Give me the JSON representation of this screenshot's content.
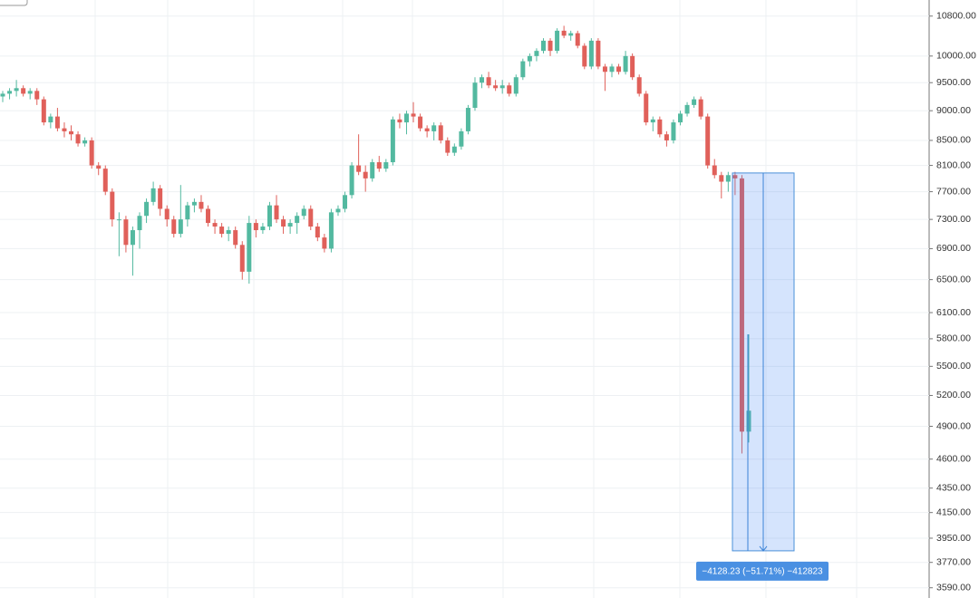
{
  "chart_data": {
    "type": "candlestick",
    "log_scale": true,
    "grid": true,
    "up_color": "#53b9a0",
    "down_color": "#e0605a",
    "ylim": [
      3520,
      11140
    ],
    "yticks": [
      {
        "value": 10800,
        "label": "10800.00"
      },
      {
        "value": 10000,
        "label": "10000.00"
      },
      {
        "value": 9500,
        "label": "9500.00"
      },
      {
        "value": 9000,
        "label": "9000.00"
      },
      {
        "value": 8500,
        "label": "8500.00"
      },
      {
        "value": 8100,
        "label": "8100.00"
      },
      {
        "value": 7700,
        "label": "7700.00"
      },
      {
        "value": 7300,
        "label": "7300.00"
      },
      {
        "value": 6900,
        "label": "6900.00"
      },
      {
        "value": 6500,
        "label": "6500.00"
      },
      {
        "value": 6100,
        "label": "6100.00"
      },
      {
        "value": 5800,
        "label": "5800.00"
      },
      {
        "value": 5500,
        "label": "5500.00"
      },
      {
        "value": 5200,
        "label": "5200.00"
      },
      {
        "value": 4900,
        "label": "4900.00"
      },
      {
        "value": 4600,
        "label": "4600.00"
      },
      {
        "value": 4350,
        "label": "4350.00"
      },
      {
        "value": 4150,
        "label": "4150.00"
      },
      {
        "value": 3950,
        "label": "3950.00"
      },
      {
        "value": 3770,
        "label": "3770.00"
      },
      {
        "value": 3590,
        "label": "3590.00"
      }
    ],
    "candles": [
      [
        9250,
        9350,
        9150,
        9300
      ],
      [
        9300,
        9400,
        9200,
        9350
      ],
      [
        9350,
        9550,
        9250,
        9400
      ],
      [
        9400,
        9450,
        9250,
        9300
      ],
      [
        9300,
        9400,
        9200,
        9350
      ],
      [
        9350,
        9400,
        9100,
        9200
      ],
      [
        9200,
        9250,
        8750,
        8800
      ],
      [
        8800,
        8950,
        8700,
        8900
      ],
      [
        8900,
        9050,
        8650,
        8700
      ],
      [
        8700,
        8800,
        8550,
        8650
      ],
      [
        8650,
        8750,
        8500,
        8600
      ],
      [
        8600,
        8650,
        8400,
        8450
      ],
      [
        8450,
        8550,
        8400,
        8500
      ],
      [
        8500,
        8550,
        8050,
        8100
      ],
      [
        8100,
        8150,
        7950,
        8050
      ],
      [
        8050,
        8100,
        7650,
        7700
      ],
      [
        7700,
        7750,
        7200,
        7300
      ],
      [
        7300,
        7400,
        6800,
        7300
      ],
      [
        7300,
        7350,
        6850,
        6950
      ],
      [
        6950,
        7200,
        6550,
        7150
      ],
      [
        7150,
        7400,
        6900,
        7350
      ],
      [
        7350,
        7600,
        7250,
        7550
      ],
      [
        7550,
        7850,
        7500,
        7750
      ],
      [
        7750,
        7800,
        7350,
        7450
      ],
      [
        7450,
        7500,
        7200,
        7300
      ],
      [
        7300,
        7350,
        7050,
        7100
      ],
      [
        7100,
        7800,
        7050,
        7300
      ],
      [
        7300,
        7550,
        7200,
        7500
      ],
      [
        7500,
        7600,
        7400,
        7550
      ],
      [
        7550,
        7650,
        7400,
        7450
      ],
      [
        7450,
        7500,
        7200,
        7250
      ],
      [
        7250,
        7300,
        7100,
        7200
      ],
      [
        7200,
        7250,
        7050,
        7100
      ],
      [
        7100,
        7200,
        7000,
        7150
      ],
      [
        7150,
        7200,
        6900,
        6950
      ],
      [
        6950,
        7000,
        6500,
        6600
      ],
      [
        6600,
        7350,
        6450,
        7250
      ],
      [
        7250,
        7300,
        7050,
        7150
      ],
      [
        7150,
        7250,
        7100,
        7200
      ],
      [
        7200,
        7550,
        7150,
        7500
      ],
      [
        7500,
        7650,
        7250,
        7300
      ],
      [
        7300,
        7350,
        7100,
        7200
      ],
      [
        7200,
        7300,
        7100,
        7250
      ],
      [
        7250,
        7400,
        7100,
        7350
      ],
      [
        7350,
        7500,
        7300,
        7450
      ],
      [
        7450,
        7500,
        7150,
        7200
      ],
      [
        7200,
        7250,
        7000,
        7050
      ],
      [
        7050,
        7100,
        6850,
        6900
      ],
      [
        6900,
        7450,
        6850,
        7400
      ],
      [
        7400,
        7500,
        7350,
        7450
      ],
      [
        7450,
        7700,
        7400,
        7650
      ],
      [
        7650,
        8150,
        7600,
        8100
      ],
      [
        8100,
        8600,
        7950,
        8000
      ],
      [
        8000,
        8100,
        7700,
        7900
      ],
      [
        7900,
        8200,
        7850,
        8150
      ],
      [
        8150,
        8250,
        8000,
        8050
      ],
      [
        8050,
        8200,
        8000,
        8150
      ],
      [
        8150,
        8900,
        8100,
        8850
      ],
      [
        8850,
        8950,
        8700,
        8800
      ],
      [
        8800,
        9000,
        8600,
        8950
      ],
      [
        8950,
        9150,
        8800,
        8900
      ],
      [
        8900,
        8950,
        8650,
        8700
      ],
      [
        8700,
        8750,
        8550,
        8650
      ],
      [
        8650,
        8800,
        8500,
        8750
      ],
      [
        8750,
        8800,
        8450,
        8500
      ],
      [
        8500,
        8550,
        8250,
        8300
      ],
      [
        8300,
        8450,
        8250,
        8400
      ],
      [
        8400,
        8700,
        8350,
        8650
      ],
      [
        8650,
        9100,
        8600,
        9050
      ],
      [
        9050,
        9600,
        9000,
        9500
      ],
      [
        9500,
        9650,
        9400,
        9600
      ],
      [
        9600,
        9700,
        9400,
        9450
      ],
      [
        9450,
        9550,
        9350,
        9400
      ],
      [
        9400,
        9550,
        9300,
        9450
      ],
      [
        9450,
        9500,
        9250,
        9300
      ],
      [
        9300,
        9650,
        9250,
        9600
      ],
      [
        9600,
        9950,
        9550,
        9900
      ],
      [
        9900,
        10050,
        9800,
        10000
      ],
      [
        10000,
        10150,
        9900,
        10100
      ],
      [
        10100,
        10350,
        10050,
        10300
      ],
      [
        10300,
        10350,
        10000,
        10100
      ],
      [
        10100,
        10550,
        10050,
        10500
      ],
      [
        10500,
        10600,
        10350,
        10400
      ],
      [
        10400,
        10500,
        10300,
        10450
      ],
      [
        10450,
        10500,
        10150,
        10200
      ],
      [
        10200,
        10250,
        9750,
        9800
      ],
      [
        9800,
        10350,
        9750,
        10300
      ],
      [
        10300,
        10350,
        9750,
        9800
      ],
      [
        9800,
        9850,
        9350,
        9700
      ],
      [
        9700,
        9850,
        9600,
        9800
      ],
      [
        9800,
        9850,
        9650,
        9700
      ],
      [
        9700,
        10100,
        9650,
        10000
      ],
      [
        10000,
        10050,
        9550,
        9600
      ],
      [
        9600,
        9650,
        9250,
        9300
      ],
      [
        9300,
        9350,
        8750,
        8800
      ],
      [
        8800,
        8900,
        8650,
        8850
      ],
      [
        8850,
        8900,
        8550,
        8600
      ],
      [
        8600,
        8650,
        8400,
        8500
      ],
      [
        8500,
        8850,
        8450,
        8800
      ],
      [
        8800,
        9000,
        8750,
        8950
      ],
      [
        8950,
        9150,
        8900,
        9100
      ],
      [
        9100,
        9250,
        9050,
        9200
      ],
      [
        9200,
        9250,
        8850,
        8900
      ],
      [
        8900,
        8950,
        8050,
        8100
      ],
      [
        8100,
        8200,
        7900,
        7950
      ],
      [
        7950,
        8000,
        7600,
        7850
      ],
      [
        7850,
        8000,
        7700,
        7950
      ],
      [
        7950,
        8000,
        7650,
        7900
      ],
      [
        7900,
        7950,
        4650,
        4850
      ],
      [
        4850,
        5850,
        4750,
        5050
      ]
    ],
    "measure": {
      "from": 7983,
      "to": 3855,
      "label": "−4128.23 (−51.71%) −412823"
    }
  }
}
